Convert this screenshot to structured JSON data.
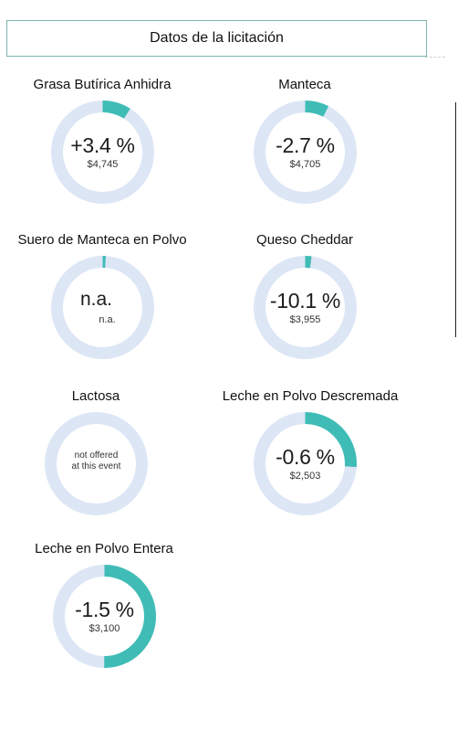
{
  "header": {
    "title": "Datos de la licitación"
  },
  "colors": {
    "ring_bg": "#dce6f5",
    "ring_fill": "#3fbcb6"
  },
  "products": [
    {
      "name": "Grasa Butírica Anhidra",
      "change": "+3.4 %",
      "price": "$4,745",
      "fill_fraction": 0.09
    },
    {
      "name": "Manteca",
      "change": "-2.7 %",
      "price": "$4,705",
      "fill_fraction": 0.075
    },
    {
      "name": "Suero de Manteca en Polvo",
      "change": "n.a.",
      "price": "n.a.",
      "fill_fraction": 0.01
    },
    {
      "name": "Queso Cheddar",
      "change": "-10.1 %",
      "price": "$3,955",
      "fill_fraction": 0.02
    },
    {
      "name": "Lactosa",
      "note_line1": "not offered",
      "note_line2": "at this event",
      "fill_fraction": 0
    },
    {
      "name": "Leche en Polvo Descremada",
      "change": "-0.6 %",
      "price": "$2,503",
      "fill_fraction": 0.26
    },
    {
      "name": "Leche en Polvo Entera",
      "change": "-1.5 %",
      "price": "$3,100",
      "fill_fraction": 0.5
    }
  ]
}
